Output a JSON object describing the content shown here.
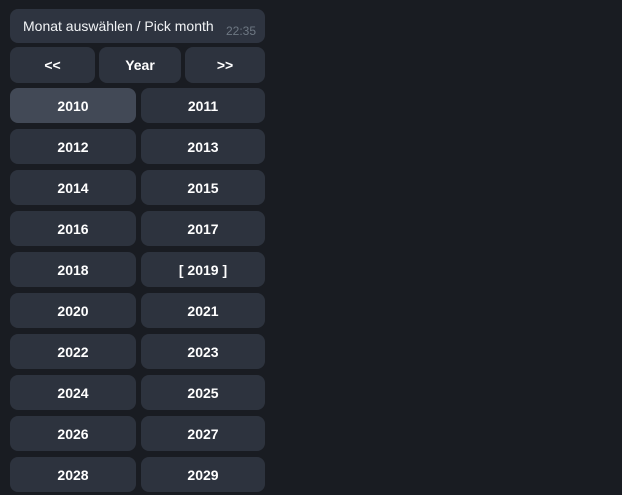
{
  "colors": {
    "background": "#191c22",
    "bubble": "#2e3440",
    "button": "#2d333e",
    "button_highlighted": "#424956",
    "message_text": "#f2f4f6",
    "timestamp_text": "#6e7883",
    "button_text": "#ffffff"
  },
  "message": {
    "text": "Monat auswählen / Pick month",
    "time": "22:35"
  },
  "nav": {
    "prev_label": "<<",
    "title_label": "Year",
    "next_label": ">>"
  },
  "years": {
    "rows": [
      [
        "2010",
        "2011"
      ],
      [
        "2012",
        "2013"
      ],
      [
        "2014",
        "2015"
      ],
      [
        "2016",
        "2017"
      ],
      [
        "2018",
        "[ 2019 ]"
      ],
      [
        "2020",
        "2021"
      ],
      [
        "2022",
        "2023"
      ],
      [
        "2024",
        "2025"
      ],
      [
        "2026",
        "2027"
      ],
      [
        "2028",
        "2029"
      ]
    ],
    "highlighted_year": "2010",
    "bracketed_selection": "[ 2019 ]"
  }
}
